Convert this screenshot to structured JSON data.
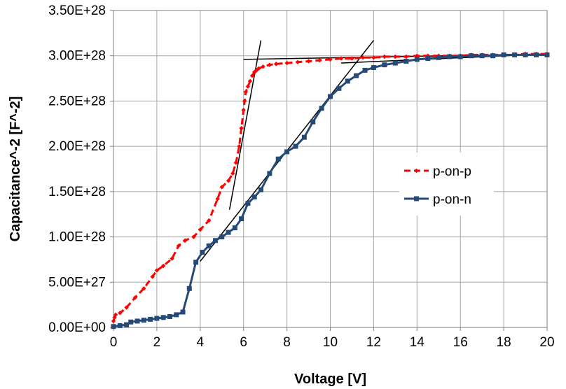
{
  "chart_data": {
    "type": "line",
    "title": "",
    "xlabel": "Voltage [V]",
    "ylabel": "Capacitance^-2 [F^-2]",
    "xlim": [
      0,
      20
    ],
    "ylim": [
      0,
      3.5e+28
    ],
    "x_ticks": [
      0,
      2,
      4,
      6,
      8,
      10,
      12,
      14,
      16,
      18,
      20
    ],
    "x_tick_labels": [
      "0",
      "2",
      "4",
      "6",
      "8",
      "10",
      "12",
      "14",
      "16",
      "18",
      "20"
    ],
    "y_ticks": [
      0,
      5e+27,
      1e+28,
      1.5e+28,
      2e+28,
      2.5e+28,
      3e+28,
      3.5e+28
    ],
    "y_tick_labels": [
      "0.00E+00",
      "5.00E+27",
      "1.00E+28",
      "1.50E+28",
      "2.00E+28",
      "2.50E+28",
      "3.00E+28",
      "3.50E+28"
    ],
    "grid": true,
    "legend_position": "right-middle",
    "series": [
      {
        "name": "p-on-p",
        "color": "#ff0000",
        "line_style": "dashed",
        "marker": "diamond",
        "x": [
          0,
          0.05,
          0.1,
          0.3,
          0.6,
          1.0,
          1.4,
          1.8,
          2.0,
          2.3,
          2.7,
          3.0,
          3.3,
          3.7,
          4.0,
          4.4,
          4.8,
          5.0,
          5.3,
          5.5,
          5.65,
          5.8,
          5.9,
          6.0,
          6.05,
          6.1,
          6.2,
          6.3,
          6.4,
          6.5,
          6.6,
          6.7,
          6.9,
          7.2,
          7.5,
          8,
          8.5,
          9,
          9.5,
          10,
          10.5,
          11,
          11.5,
          12,
          12.5,
          13,
          13.5,
          14,
          14.5,
          15,
          15.5,
          16,
          16.5,
          17,
          17.5,
          18,
          18.5,
          19,
          19.5,
          20
        ],
        "values": [
          7e+26,
          1.1e+27,
          1.4e+27,
          1.6e+27,
          2.2e+27,
          3.3e+27,
          4.3e+27,
          5.6e+27,
          6.3e+27,
          6.8e+27,
          7.6e+27,
          9e+27,
          9.6e+27,
          1e+28,
          1.08e+28,
          1.18e+28,
          1.42e+28,
          1.55e+28,
          1.62e+28,
          1.7e+28,
          1.82e+28,
          2e+28,
          2.2e+28,
          2.4e+28,
          2.5e+28,
          2.6e+28,
          2.66e+28,
          2.72e+28,
          2.78e+28,
          2.82e+28,
          2.84e+28,
          2.86e+28,
          2.88e+28,
          2.9e+28,
          2.91e+28,
          2.92e+28,
          2.93e+28,
          2.94e+28,
          2.95e+28,
          2.96e+28,
          2.97e+28,
          2.97e+28,
          2.98e+28,
          2.98e+28,
          2.99e+28,
          2.99e+28,
          2.99e+28,
          3e+28,
          3e+28,
          3e+28,
          3e+28,
          3e+28,
          3.01e+28,
          3.01e+28,
          3.01e+28,
          3.01e+28,
          3.01e+28,
          3.02e+28,
          3.02e+28,
          3.02e+28
        ]
      },
      {
        "name": "p-on-n",
        "color": "#254a78",
        "line_style": "solid",
        "marker": "square",
        "x": [
          0,
          0.3,
          0.6,
          0.8,
          1.1,
          1.4,
          1.7,
          2.0,
          2.3,
          2.6,
          2.9,
          3.2,
          3.5,
          3.8,
          4.1,
          4.4,
          4.7,
          5.0,
          5.3,
          5.6,
          5.9,
          6.2,
          6.5,
          6.8,
          7.2,
          7.6,
          8.0,
          8.4,
          8.8,
          9.2,
          9.6,
          10.0,
          10.4,
          10.8,
          11.2,
          11.6,
          12.0,
          12.5,
          13.0,
          13.5,
          14.0,
          14.5,
          15.0,
          15.5,
          16.0,
          16.5,
          17.0,
          17.5,
          18.0,
          18.5,
          19.0,
          19.5,
          20.0
        ],
        "values": [
          1e+26,
          2e+26,
          3e+26,
          6e+26,
          7e+26,
          8e+26,
          9e+26,
          1e+27,
          1.1e+27,
          1.2e+27,
          1.4e+27,
          1.7e+27,
          4.3e+27,
          7.2e+27,
          8.3e+27,
          9e+27,
          9.6e+27,
          1e+28,
          1.05e+28,
          1.1e+28,
          1.2e+28,
          1.37e+28,
          1.44e+28,
          1.52e+28,
          1.7e+28,
          1.86e+28,
          1.94e+28,
          2e+28,
          2.1e+28,
          2.27e+28,
          2.42e+28,
          2.55e+28,
          2.64e+28,
          2.72e+28,
          2.78e+28,
          2.84e+28,
          2.87e+28,
          2.9e+28,
          2.92e+28,
          2.94e+28,
          2.96e+28,
          2.97e+28,
          2.98e+28,
          2.99e+28,
          2.99e+28,
          3e+28,
          3e+28,
          3e+28,
          3.01e+28,
          3.01e+28,
          3.01e+28,
          3.01e+28,
          3.01e+28
        ]
      }
    ],
    "fit_lines": [
      {
        "x": [
          5.35,
          6.8
        ],
        "values": [
          1.3e+28,
          3.17e+28
        ]
      },
      {
        "x": [
          6.0,
          20.0
        ],
        "values": [
          2.96e+28,
          3.02e+28
        ]
      },
      {
        "x": [
          4.0,
          12.0
        ],
        "values": [
          7.3e+27,
          3.17e+28
        ]
      },
      {
        "x": [
          10.5,
          20.0
        ],
        "values": [
          2.92e+28,
          3.02e+28
        ]
      }
    ]
  }
}
